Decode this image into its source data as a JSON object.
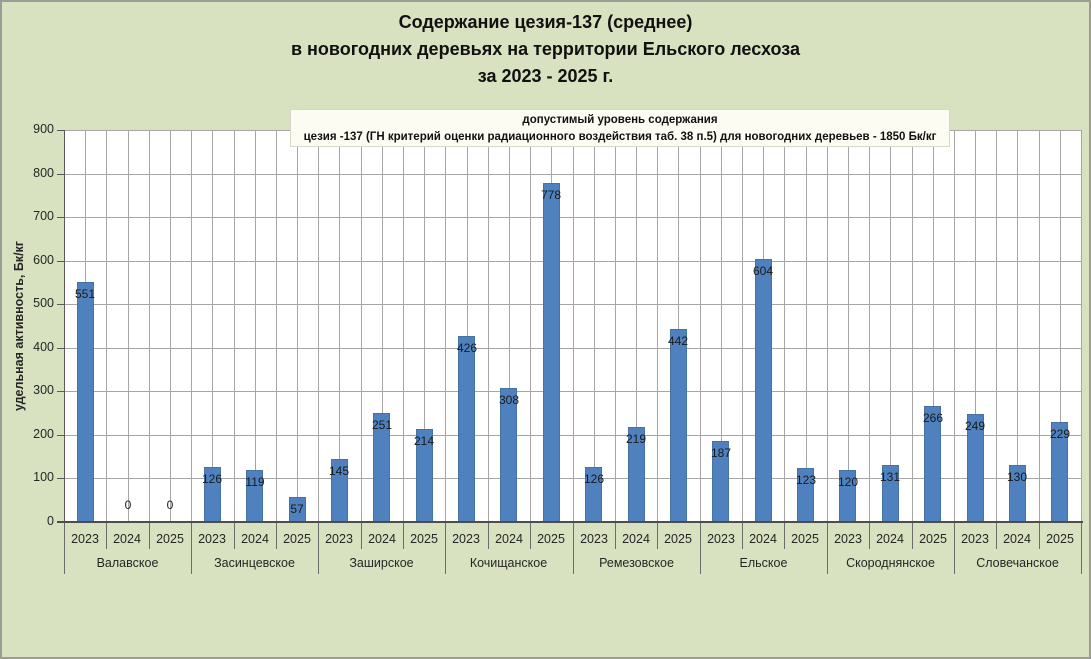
{
  "title": {
    "line1": "Содержание цезия-137 (среднее)",
    "line2": "в новогодних деревьях на территории Ельского лесхоза",
    "line3": "за 2023 - 2025 г."
  },
  "note_box": {
    "line1": "допустимый  уровень  содержания",
    "line2": "цезия -137 (ГН критерий оценки радиационного  воздействия таб. 38 п.5) для новогодних деревьев - 1850 Бк/кг"
  },
  "chart_data": {
    "type": "bar",
    "title": "Содержание цезия-137 (среднее) в новогодних деревьях на территории Ельского лесхоза за 2023 - 2025 г.",
    "ylabel": "удельная активность,  Бк/кг",
    "ylim": [
      0,
      900
    ],
    "ytick_step": 100,
    "grid": true,
    "legend_position": "none",
    "categories": [
      "Валавское",
      "Засинцевское",
      "Заширское",
      "Кочищанское",
      "Ремезовское",
      "Ельское",
      "Скороднянское",
      "Словечанское"
    ],
    "series": [
      {
        "name": "2023",
        "values": [
          551,
          126,
          145,
          426,
          126,
          187,
          120,
          249
        ]
      },
      {
        "name": "2024",
        "values": [
          0,
          119,
          251,
          308,
          219,
          604,
          131,
          130
        ]
      },
      {
        "name": "2025",
        "values": [
          0,
          57,
          214,
          778,
          442,
          123,
          266,
          229
        ]
      }
    ],
    "annotation": "допустимый уровень содержания цезия -137 для новогодних деревьев - 1850 Бк/кг"
  },
  "colors": {
    "background": "#D8E1C0",
    "plot_background": "#FFFFFF",
    "bar": "#4E81BD",
    "gridline": "#A6A6A6",
    "axis": "#595959",
    "note_background": "#FCFCF2"
  }
}
